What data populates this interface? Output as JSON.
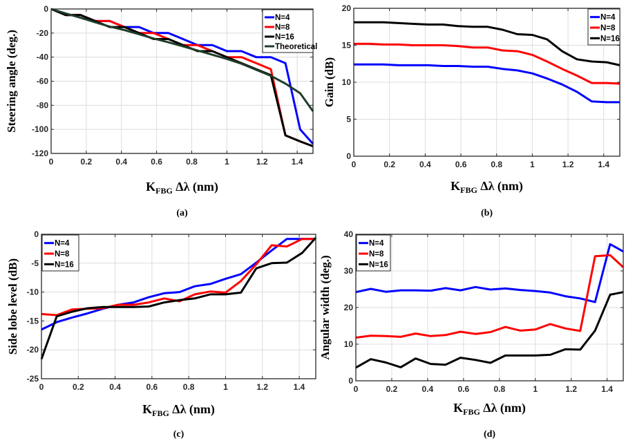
{
  "chart_data": [
    {
      "id": "a",
      "type": "line",
      "caption": "(a)",
      "title": "",
      "xlabel": "K_FBG Δλ (nm)",
      "xlabel_main": "K",
      "xlabel_sub": "FBG",
      "xlabel_rest": " Δλ (nm)",
      "ylabel": "Steering angle (deg.)",
      "xlim": [
        0,
        1.49
      ],
      "ylim": [
        -120,
        0
      ],
      "xticks": [
        0,
        0.2,
        0.4,
        0.6,
        0.8,
        1,
        1.2,
        1.4
      ],
      "xtick_labels": [
        "0",
        "0.2",
        "0.4",
        "0.6",
        "0.8",
        "1",
        "1.2",
        "1.4"
      ],
      "yticks": [
        0,
        -20,
        -40,
        -60,
        -80,
        -100,
        -120
      ],
      "ytick_labels": [
        "0",
        "-20",
        "-40",
        "-60",
        "-80",
        "-100",
        "-120"
      ],
      "grid": true,
      "legend_position": "top-right",
      "x": [
        0,
        0.083,
        0.167,
        0.25,
        0.333,
        0.417,
        0.5,
        0.583,
        0.667,
        0.75,
        0.833,
        0.917,
        1.0,
        1.083,
        1.167,
        1.25,
        1.333,
        1.417,
        1.49
      ],
      "series": [
        {
          "name": "N=4",
          "color": "#0000ff",
          "values": [
            0,
            -5,
            -5,
            -10,
            -10,
            -15,
            -15,
            -20,
            -20,
            -25,
            -30,
            -30,
            -35,
            -35,
            -40,
            -40,
            -45,
            -100,
            -112
          ]
        },
        {
          "name": "N=8",
          "color": "#ff0000",
          "values": [
            0,
            -5,
            -5,
            -10,
            -10,
            -15,
            -20,
            -20,
            -25,
            -30,
            -30,
            -35,
            -40,
            -40,
            -45,
            -50,
            -105,
            -110,
            -114
          ]
        },
        {
          "name": "N=16",
          "color": "#000000",
          "values": [
            0,
            -5,
            -5,
            -10,
            -15,
            -15,
            -20,
            -25,
            -25,
            -30,
            -35,
            -35,
            -40,
            -45,
            -50,
            -55,
            -105,
            -110,
            -114
          ]
        },
        {
          "name": "Theoretical",
          "color": "#1f3d2a",
          "values": [
            0,
            -3.7,
            -7.3,
            -11,
            -14.6,
            -17.5,
            -21,
            -24.5,
            -27.7,
            -31,
            -34.5,
            -38,
            -41.5,
            -45.5,
            -50.5,
            -55.5,
            -62,
            -70,
            -85
          ]
        }
      ]
    },
    {
      "id": "b",
      "type": "line",
      "caption": "(b)",
      "title": "",
      "xlabel": "K_FBG Δλ (nm)",
      "xlabel_main": "K",
      "xlabel_sub": "FBG",
      "xlabel_rest": " Δλ (nm)",
      "ylabel": "Gain (dB)",
      "xlim": [
        0,
        1.49
      ],
      "ylim": [
        0,
        20
      ],
      "xticks": [
        0,
        0.2,
        0.4,
        0.6,
        0.8,
        1,
        1.2,
        1.4
      ],
      "xtick_labels": [
        "0",
        "0.2",
        "0.4",
        "0.6",
        "0.8",
        "1",
        "1.2",
        "1.4"
      ],
      "yticks": [
        0,
        5,
        10,
        15,
        20
      ],
      "ytick_labels": [
        "0",
        "5",
        "10",
        "15",
        "20"
      ],
      "grid": true,
      "legend_position": "top-right",
      "x": [
        0,
        0.083,
        0.167,
        0.25,
        0.333,
        0.417,
        0.5,
        0.583,
        0.667,
        0.75,
        0.833,
        0.917,
        1.0,
        1.083,
        1.167,
        1.25,
        1.333,
        1.417,
        1.49
      ],
      "series": [
        {
          "name": "N=4",
          "color": "#0000ff",
          "values": [
            12.4,
            12.4,
            12.4,
            12.3,
            12.3,
            12.3,
            12.2,
            12.2,
            12.1,
            12.1,
            11.8,
            11.6,
            11.2,
            10.5,
            9.7,
            8.7,
            7.4,
            7.3,
            7.3
          ]
        },
        {
          "name": "N=8",
          "color": "#ff0000",
          "values": [
            15.2,
            15.2,
            15.1,
            15.1,
            15.0,
            15.0,
            15.0,
            14.9,
            14.7,
            14.7,
            14.3,
            14.2,
            13.7,
            12.8,
            11.8,
            10.9,
            9.9,
            9.9,
            9.8
          ]
        },
        {
          "name": "N=16",
          "color": "#000000",
          "values": [
            18.1,
            18.1,
            18.1,
            18.0,
            17.9,
            17.8,
            17.8,
            17.6,
            17.5,
            17.5,
            17.1,
            16.5,
            16.4,
            15.8,
            14.2,
            13.1,
            12.8,
            12.7,
            12.3
          ]
        }
      ]
    },
    {
      "id": "c",
      "type": "line",
      "caption": "(c)",
      "title": "",
      "xlabel": "K_FBG Δλ (nm)",
      "xlabel_main": "K",
      "xlabel_sub": "FBG",
      "xlabel_rest": " Δλ (nm)",
      "ylabel": "Side lobe level (dB)",
      "xlim": [
        0,
        1.49
      ],
      "ylim": [
        -25,
        0
      ],
      "xticks": [
        0,
        0.2,
        0.4,
        0.6,
        0.8,
        1,
        1.2,
        1.4
      ],
      "xtick_labels": [
        "0",
        "0.2",
        "0.4",
        "0.6",
        "0.8",
        "1",
        "1.2",
        "1.4"
      ],
      "yticks": [
        0,
        -5,
        -10,
        -15,
        -20,
        -25
      ],
      "ytick_labels": [
        "0",
        "-5",
        "-10",
        "-15",
        "-20",
        "-25"
      ],
      "grid": true,
      "legend_position": "top-left",
      "x": [
        0,
        0.083,
        0.167,
        0.25,
        0.333,
        0.417,
        0.5,
        0.583,
        0.667,
        0.75,
        0.833,
        0.917,
        1.0,
        1.083,
        1.167,
        1.25,
        1.333,
        1.417,
        1.49
      ],
      "series": [
        {
          "name": "N=4",
          "color": "#0000ff",
          "values": [
            -16.5,
            -15.2,
            -14.4,
            -13.7,
            -12.9,
            -12.2,
            -11.8,
            -10.9,
            -10.2,
            -10.0,
            -9.0,
            -8.6,
            -7.7,
            -6.9,
            -4.9,
            -2.8,
            -0.8,
            -0.8,
            -0.8
          ]
        },
        {
          "name": "N=8",
          "color": "#ff0000",
          "values": [
            -13.8,
            -14.0,
            -13.0,
            -12.9,
            -12.8,
            -12.2,
            -12.2,
            -11.8,
            -11.1,
            -11.6,
            -10.4,
            -9.9,
            -10.1,
            -8.1,
            -5.2,
            -1.9,
            -2.1,
            -0.8,
            -0.8
          ]
        },
        {
          "name": "N=16",
          "color": "#000000",
          "values": [
            -21.6,
            -14.2,
            -13.4,
            -12.8,
            -12.6,
            -12.6,
            -12.6,
            -12.5,
            -11.8,
            -11.4,
            -11.1,
            -10.4,
            -10.4,
            -10.1,
            -5.9,
            -5.0,
            -4.9,
            -3.2,
            -0.6
          ]
        }
      ]
    },
    {
      "id": "d",
      "type": "line",
      "caption": "(d)",
      "title": "",
      "xlabel": "K_FBG Δλ (nm)",
      "xlabel_main": "K",
      "xlabel_sub": "FBG",
      "xlabel_rest": " Δλ (nm)",
      "ylabel": "Angular width (deg.)",
      "xlim": [
        0,
        1.49
      ],
      "ylim": [
        0,
        40
      ],
      "xticks": [
        0,
        0.2,
        0.4,
        0.6,
        0.8,
        1,
        1.2,
        1.4
      ],
      "xtick_labels": [
        "0",
        "0.2",
        "0.4",
        "0.6",
        "0.8",
        "1",
        "1.2",
        "1.4"
      ],
      "yticks": [
        0,
        10,
        20,
        30,
        40
      ],
      "ytick_labels": [
        "0",
        "10",
        "20",
        "30",
        "40"
      ],
      "grid": true,
      "legend_position": "top-left",
      "x": [
        0,
        0.083,
        0.167,
        0.25,
        0.333,
        0.417,
        0.5,
        0.583,
        0.667,
        0.75,
        0.833,
        0.917,
        1.0,
        1.083,
        1.167,
        1.25,
        1.333,
        1.417,
        1.49
      ],
      "series": [
        {
          "name": "N=4",
          "color": "#0000ff",
          "values": [
            24.2,
            25.1,
            24.3,
            24.7,
            24.7,
            24.6,
            25.3,
            24.7,
            25.6,
            24.9,
            25.2,
            24.8,
            24.5,
            24.1,
            23.1,
            22.5,
            21.5,
            37.3,
            35.3
          ]
        },
        {
          "name": "N=8",
          "color": "#ff0000",
          "values": [
            11.8,
            12.3,
            12.2,
            12.0,
            12.9,
            12.2,
            12.5,
            13.4,
            12.8,
            13.3,
            14.7,
            13.7,
            14.0,
            15.5,
            14.3,
            13.6,
            34.0,
            34.3,
            31.0
          ]
        },
        {
          "name": "N=16",
          "color": "#000000",
          "values": [
            3.6,
            5.9,
            5.0,
            3.7,
            6.1,
            4.6,
            4.4,
            6.3,
            5.7,
            4.9,
            6.9,
            6.9,
            6.9,
            7.1,
            8.6,
            8.5,
            13.7,
            23.5,
            24.2
          ]
        }
      ]
    }
  ]
}
